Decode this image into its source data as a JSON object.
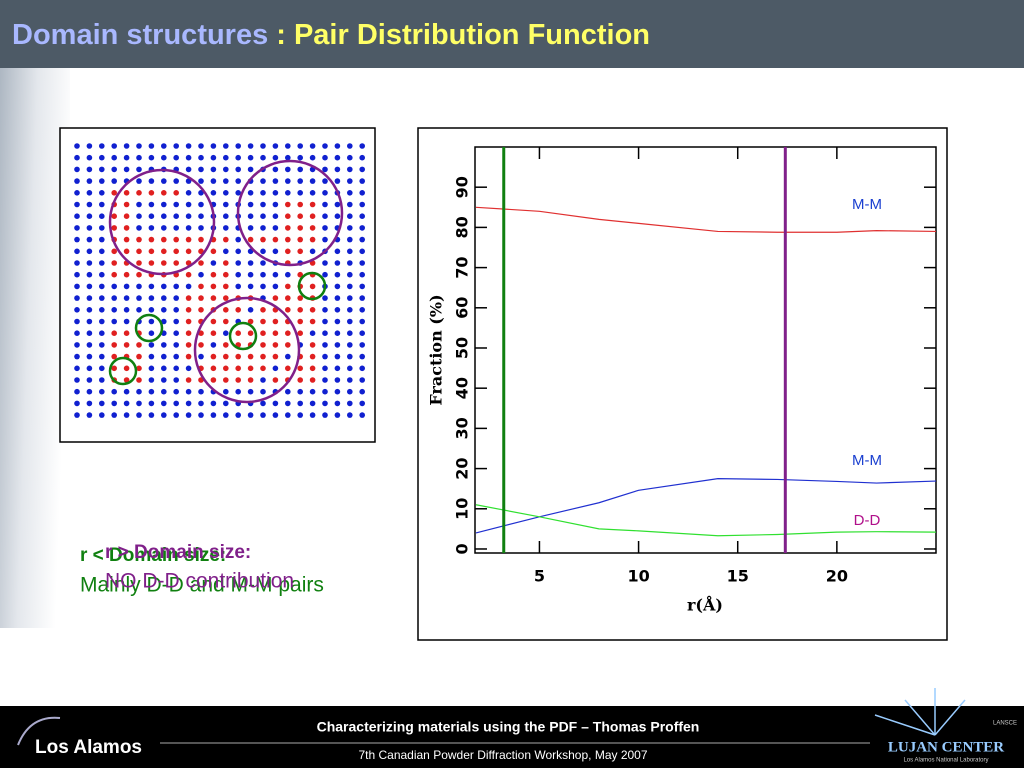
{
  "slide": {
    "title_part1": "Domain structures",
    "title_part2": ": Pair Distribution Function",
    "note_low_head": "r < Domain size:",
    "note_low_body": "Mainly D-D and M-M pairs",
    "note_high_head": "r > Domain size:",
    "note_high_body": "NO D-D contribution",
    "footer_title": "Characterizing materials using the PDF – Thomas Proffen",
    "footer_event": "7th Canadian Powder Diffraction Workshop, May 2007",
    "logo_left": "Los Alamos",
    "logo_right": "LUJAN CENTER",
    "logo_right_small": "Los Alamos National Laboratory",
    "logo_right_tag": "LANSCE"
  },
  "chart_data": {
    "type": "line",
    "x": [
      1.8,
      5,
      8,
      10,
      14,
      17,
      20,
      22,
      25
    ],
    "series": [
      {
        "name": "M-M",
        "color": "#e03030",
        "label_color": "#1a3fd0",
        "values": [
          85,
          84,
          82,
          81,
          79,
          78.8,
          78.8,
          79.2,
          79
        ]
      },
      {
        "name": "M-M",
        "color": "#2030d0",
        "label_color": "#1a3fd0",
        "values": [
          4,
          8,
          11.5,
          14.6,
          17.5,
          17.3,
          16.8,
          16.4,
          16.9
        ]
      },
      {
        "name": "D-D",
        "color": "#30e030",
        "label_color": "#b0108a",
        "values": [
          11,
          8,
          5,
          4.5,
          3.3,
          3.6,
          4.2,
          4.3,
          4.2
        ]
      }
    ],
    "markers": [
      {
        "value": 3.2,
        "color": "#108010"
      },
      {
        "value": 17.4,
        "color": "#80208a"
      }
    ],
    "xlabel": "r(Å)",
    "ylabel": "Fraction (%)",
    "xlim": [
      1.75,
      25
    ],
    "ylim": [
      -1,
      100
    ],
    "xticks": [
      5,
      10,
      15,
      20
    ],
    "yticks": [
      0,
      10,
      20,
      30,
      40,
      50,
      60,
      70,
      80,
      90
    ]
  }
}
